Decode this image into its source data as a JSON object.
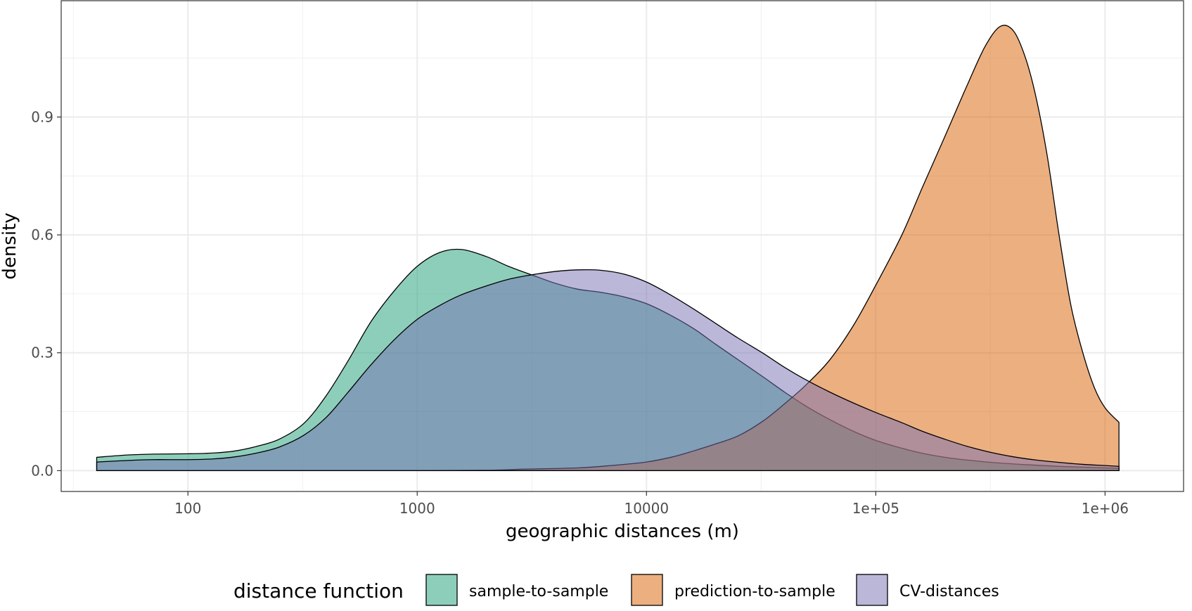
{
  "chart_data": {
    "type": "area",
    "subtype": "density",
    "title": "",
    "xlabel": "geographic distances (m)",
    "ylabel": "density",
    "x_scale": "log10",
    "xlim": [
      28,
      2200000
    ],
    "ylim": [
      -0.053,
      1.196
    ],
    "x_ticks": [
      {
        "value": 100,
        "label": "100"
      },
      {
        "value": 1000,
        "label": "1000"
      },
      {
        "value": 10000,
        "label": "10000"
      },
      {
        "value": 100000,
        "label": "1e+05"
      },
      {
        "value": 1000000,
        "label": "1e+06"
      }
    ],
    "y_ticks": [
      {
        "value": 0.0,
        "label": "0.0"
      },
      {
        "value": 0.3,
        "label": "0.3"
      },
      {
        "value": 0.6,
        "label": "0.6"
      },
      {
        "value": 0.9,
        "label": "0.9"
      }
    ],
    "grid": true,
    "legend": {
      "title": "distance function",
      "position": "bottom"
    },
    "series": [
      {
        "name": "sample-to-sample",
        "color": "#1b9e77",
        "alpha": 0.5,
        "points": [
          [
            40,
            0.034
          ],
          [
            55,
            0.04
          ],
          [
            70,
            0.042
          ],
          [
            100,
            0.043
          ],
          [
            130,
            0.045
          ],
          [
            160,
            0.05
          ],
          [
            200,
            0.062
          ],
          [
            250,
            0.08
          ],
          [
            320,
            0.12
          ],
          [
            400,
            0.19
          ],
          [
            500,
            0.28
          ],
          [
            630,
            0.38
          ],
          [
            800,
            0.46
          ],
          [
            1000,
            0.52
          ],
          [
            1250,
            0.555
          ],
          [
            1550,
            0.563
          ],
          [
            2000,
            0.545
          ],
          [
            2500,
            0.52
          ],
          [
            3200,
            0.497
          ],
          [
            4000,
            0.477
          ],
          [
            5000,
            0.462
          ],
          [
            6300,
            0.454
          ],
          [
            8000,
            0.442
          ],
          [
            10000,
            0.425
          ],
          [
            12500,
            0.398
          ],
          [
            16000,
            0.362
          ],
          [
            20000,
            0.322
          ],
          [
            25000,
            0.283
          ],
          [
            32000,
            0.24
          ],
          [
            40000,
            0.2
          ],
          [
            50000,
            0.163
          ],
          [
            63000,
            0.13
          ],
          [
            80000,
            0.1
          ],
          [
            100000,
            0.077
          ],
          [
            130000,
            0.057
          ],
          [
            160000,
            0.044
          ],
          [
            200000,
            0.034
          ],
          [
            250000,
            0.027
          ],
          [
            320000,
            0.021
          ],
          [
            400000,
            0.017
          ],
          [
            500000,
            0.014
          ],
          [
            630000,
            0.011
          ],
          [
            800000,
            0.009
          ],
          [
            1000000,
            0.007
          ],
          [
            1150000,
            0.006
          ]
        ]
      },
      {
        "name": "prediction-to-sample",
        "color": "#d95f02",
        "alpha": 0.5,
        "points": [
          [
            40,
            0.0
          ],
          [
            100,
            0.0
          ],
          [
            300,
            0.0
          ],
          [
            1000,
            0.0
          ],
          [
            2000,
            0.001
          ],
          [
            3000,
            0.004
          ],
          [
            5000,
            0.007
          ],
          [
            7000,
            0.013
          ],
          [
            10000,
            0.022
          ],
          [
            13000,
            0.035
          ],
          [
            16000,
            0.05
          ],
          [
            20000,
            0.068
          ],
          [
            25000,
            0.088
          ],
          [
            32000,
            0.125
          ],
          [
            40000,
            0.17
          ],
          [
            50000,
            0.22
          ],
          [
            63000,
            0.282
          ],
          [
            80000,
            0.37
          ],
          [
            100000,
            0.472
          ],
          [
            130000,
            0.6
          ],
          [
            160000,
            0.722
          ],
          [
            200000,
            0.85
          ],
          [
            250000,
            0.98
          ],
          [
            300000,
            1.08
          ],
          [
            350000,
            1.131
          ],
          [
            400000,
            1.118
          ],
          [
            450000,
            1.05
          ],
          [
            500000,
            0.95
          ],
          [
            560000,
            0.8
          ],
          [
            630000,
            0.6
          ],
          [
            710000,
            0.42
          ],
          [
            800000,
            0.3
          ],
          [
            900000,
            0.21
          ],
          [
            1000000,
            0.16
          ],
          [
            1150000,
            0.123
          ]
        ]
      },
      {
        "name": "CV-distances",
        "color": "#7570b3",
        "alpha": 0.5,
        "points": [
          [
            40,
            0.022
          ],
          [
            55,
            0.026
          ],
          [
            70,
            0.028
          ],
          [
            100,
            0.028
          ],
          [
            130,
            0.03
          ],
          [
            160,
            0.035
          ],
          [
            200,
            0.045
          ],
          [
            250,
            0.06
          ],
          [
            320,
            0.09
          ],
          [
            400,
            0.135
          ],
          [
            500,
            0.2
          ],
          [
            630,
            0.27
          ],
          [
            800,
            0.335
          ],
          [
            1000,
            0.385
          ],
          [
            1250,
            0.42
          ],
          [
            1550,
            0.447
          ],
          [
            2000,
            0.47
          ],
          [
            2500,
            0.487
          ],
          [
            3200,
            0.499
          ],
          [
            4000,
            0.507
          ],
          [
            5000,
            0.511
          ],
          [
            6300,
            0.51
          ],
          [
            8000,
            0.5
          ],
          [
            10000,
            0.48
          ],
          [
            12500,
            0.45
          ],
          [
            16000,
            0.412
          ],
          [
            20000,
            0.375
          ],
          [
            25000,
            0.338
          ],
          [
            32000,
            0.3
          ],
          [
            40000,
            0.263
          ],
          [
            50000,
            0.23
          ],
          [
            63000,
            0.2
          ],
          [
            80000,
            0.172
          ],
          [
            100000,
            0.148
          ],
          [
            130000,
            0.122
          ],
          [
            160000,
            0.1
          ],
          [
            200000,
            0.08
          ],
          [
            250000,
            0.062
          ],
          [
            320000,
            0.046
          ],
          [
            400000,
            0.035
          ],
          [
            500000,
            0.027
          ],
          [
            630000,
            0.021
          ],
          [
            800000,
            0.016
          ],
          [
            1000000,
            0.013
          ],
          [
            1150000,
            0.011
          ]
        ]
      }
    ]
  }
}
